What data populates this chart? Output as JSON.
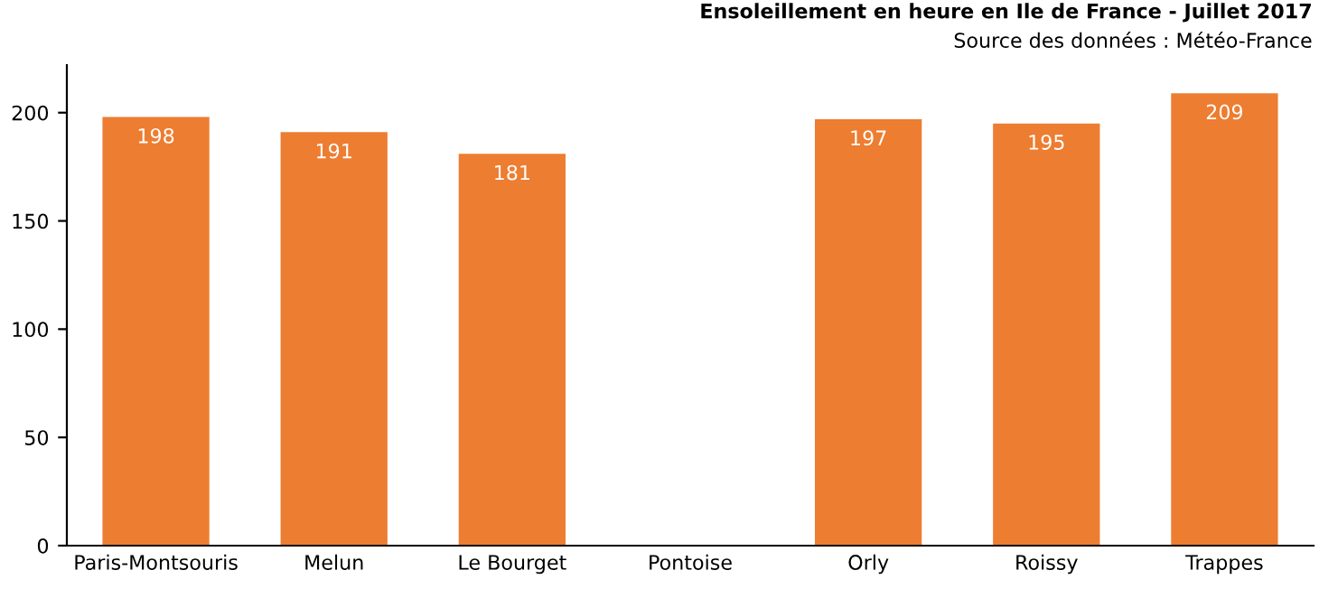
{
  "chart_data": {
    "type": "bar",
    "title": "Ensoleillement en heure en Ile de France - Juillet 2017",
    "subtitle": "Source des données : Météo-France",
    "categories": [
      "Paris-Montsouris",
      "Melun",
      "Le Bourget",
      "Pontoise",
      "Orly",
      "Roissy",
      "Trappes"
    ],
    "values": [
      198,
      191,
      181,
      null,
      197,
      195,
      209
    ],
    "color": "#ed7d31",
    "ylim": [
      0,
      222
    ],
    "yticks": [
      0,
      50,
      100,
      150,
      200
    ],
    "grid": false,
    "data_labels": true
  }
}
